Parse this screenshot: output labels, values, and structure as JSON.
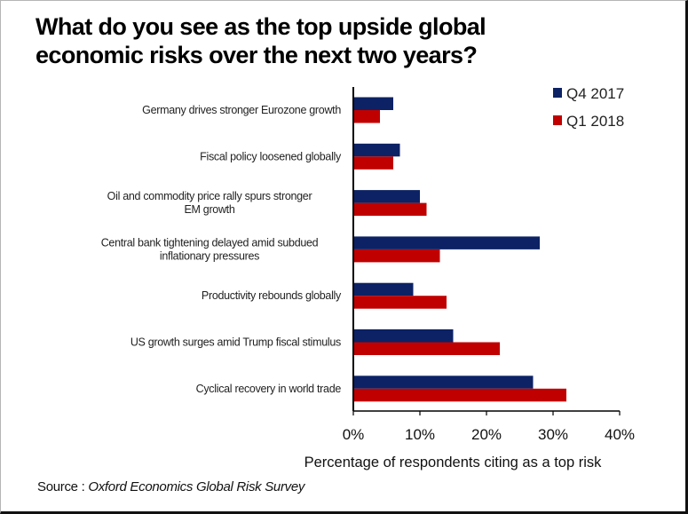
{
  "chart_data": {
    "type": "bar",
    "orientation": "horizontal",
    "title": "What do you see as the top upside global economic risks over the next two years?",
    "title_lines": [
      "What do you see as the top upside global",
      "economic risks over the next two years?"
    ],
    "categories": [
      [
        "Germany drives stronger Eurozone growth"
      ],
      [
        "Fiscal policy loosened globally"
      ],
      [
        "Oil and commodity price rally spurs stronger",
        "EM growth"
      ],
      [
        "Central bank tightening delayed amid subdued",
        "inflationary pressures"
      ],
      [
        "Productivity rebounds globally"
      ],
      [
        "US growth surges amid Trump fiscal stimulus"
      ],
      [
        "Cyclical recovery in world trade"
      ]
    ],
    "series": [
      {
        "name": "Q4 2017",
        "color": "#0c2265",
        "values": [
          6,
          7,
          10,
          28,
          9,
          15,
          27
        ]
      },
      {
        "name": "Q1 2018",
        "color": "#c00000",
        "values": [
          4,
          6,
          11,
          13,
          14,
          22,
          32
        ]
      }
    ],
    "xlabel": "Percentage of respondents citing as a top risk",
    "ylabel": "",
    "xlim": [
      0,
      40
    ],
    "xticks": [
      0,
      10,
      20,
      30,
      40
    ],
    "xtick_labels": [
      "0%",
      "10%",
      "20%",
      "30%",
      "40%"
    ],
    "grid": false,
    "legend_position": "top-right",
    "source_label": "Source :",
    "source_name": "Oxford Economics Global Risk Survey"
  }
}
